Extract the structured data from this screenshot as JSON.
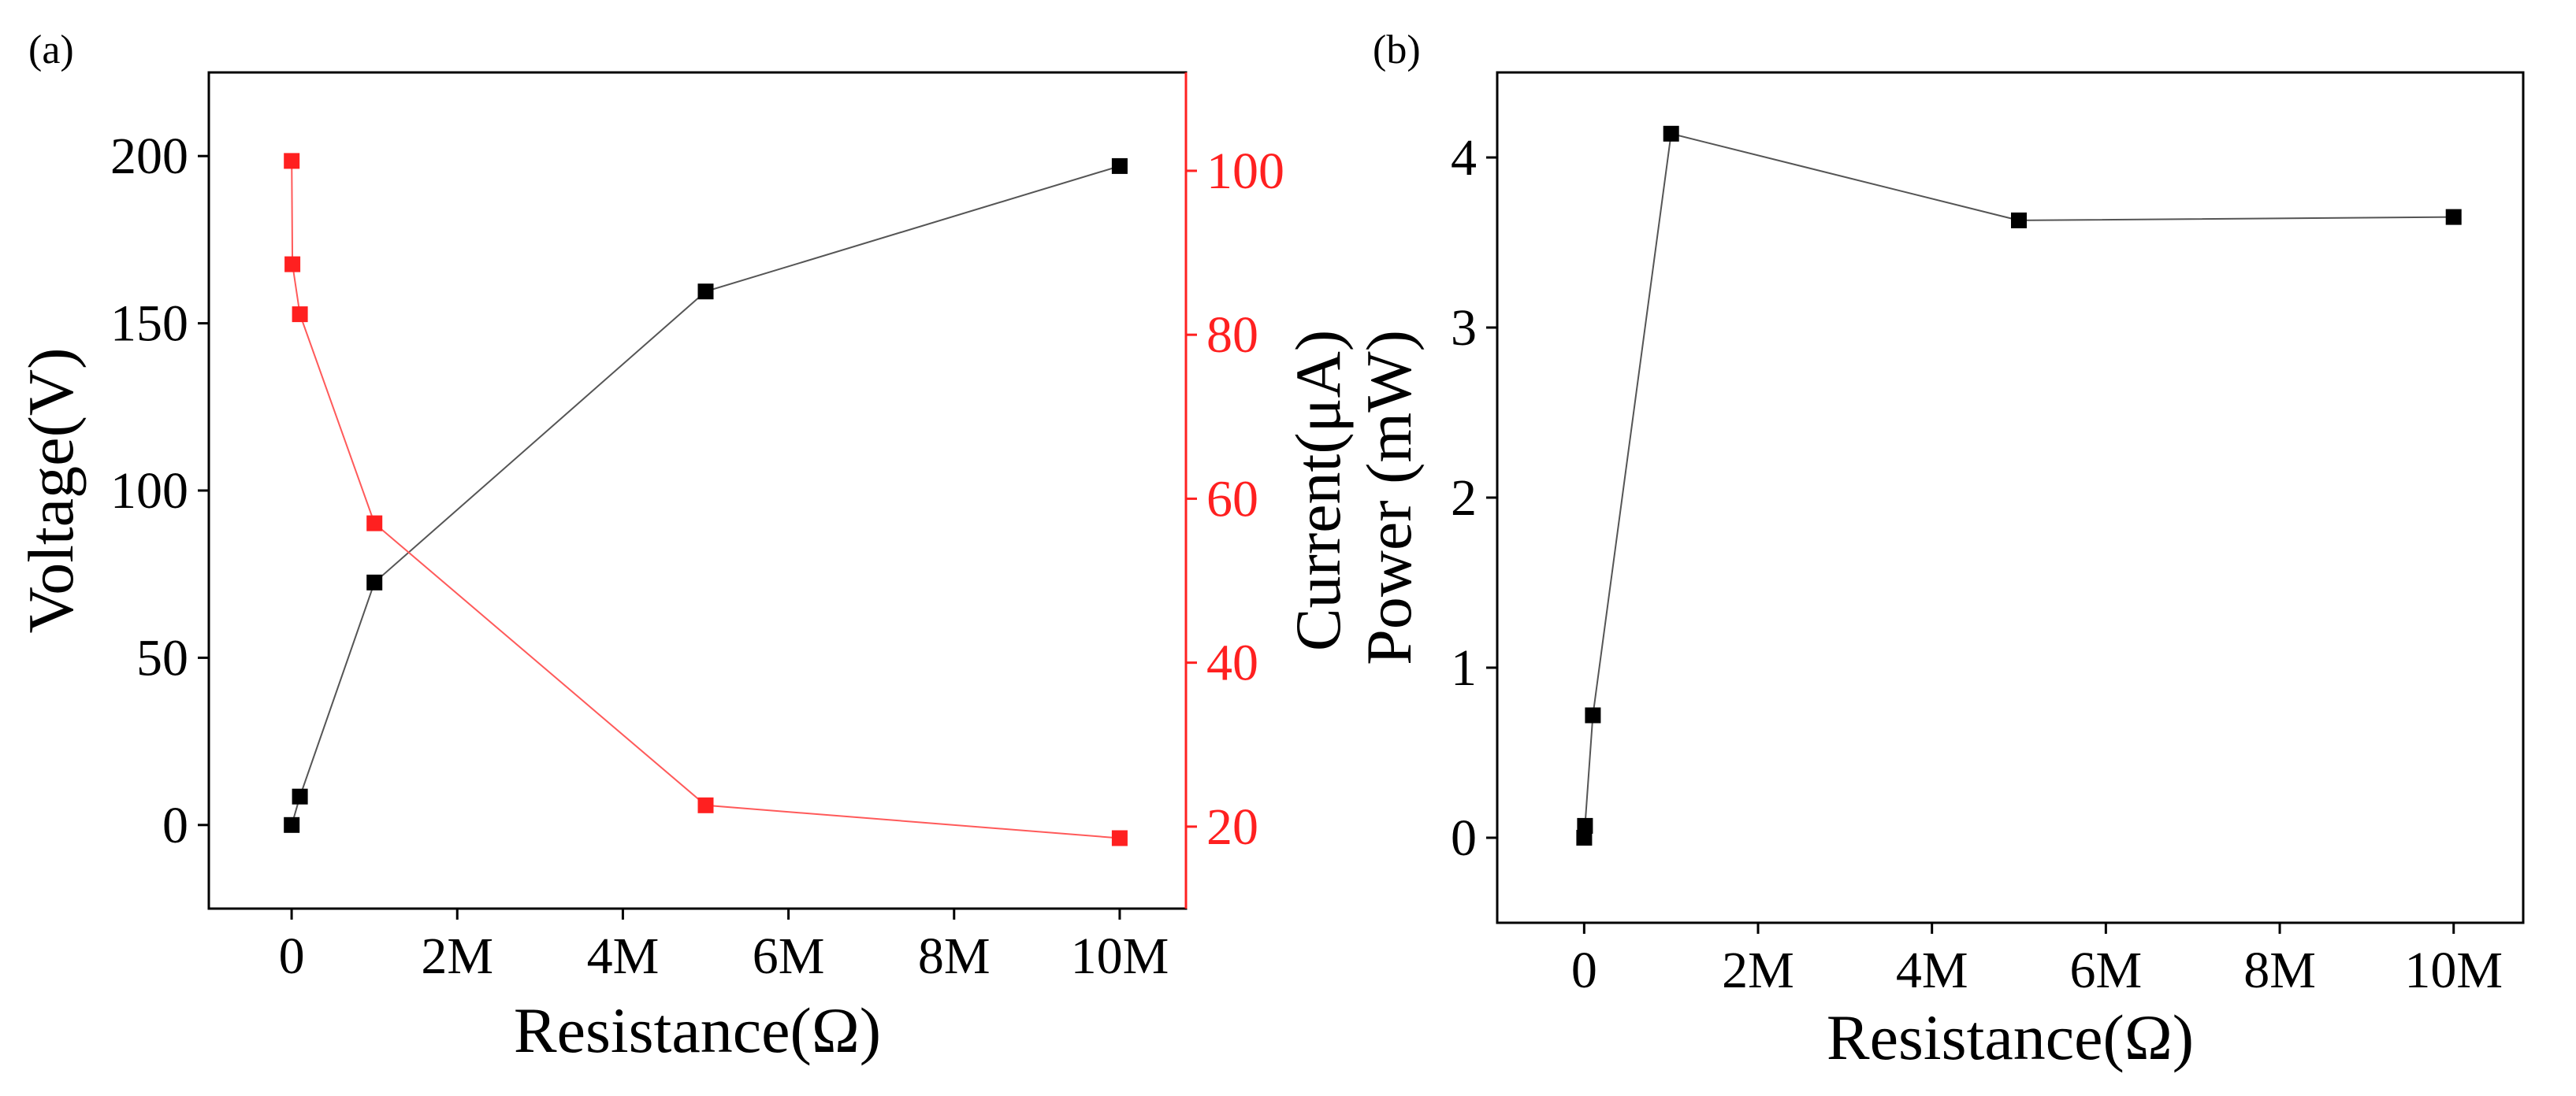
{
  "chart_data": [
    {
      "panel_label": "(a)",
      "type": "line",
      "xlabel": "Resistance(Ω)",
      "ylabel": "Voltage(V)",
      "y2label": "Current(μA)",
      "xlim": [
        -1000000,
        10800000
      ],
      "ylim": [
        -25,
        225
      ],
      "y2lim": [
        10,
        112
      ],
      "x_ticks": [
        0,
        2000000,
        4000000,
        6000000,
        8000000,
        10000000
      ],
      "x_tick_labels": [
        "0",
        "2M",
        "4M",
        "6M",
        "8M",
        "10M"
      ],
      "y_ticks": [
        0,
        50,
        100,
        150,
        200
      ],
      "y_tick_labels": [
        "0",
        "50",
        "100",
        "150",
        "200"
      ],
      "y2_ticks": [
        20,
        40,
        60,
        80,
        100
      ],
      "y2_tick_labels": [
        "20",
        "40",
        "60",
        "80",
        "100"
      ],
      "series": [
        {
          "name": "Voltage",
          "axis": "left",
          "color": "#000000",
          "x": [
            1000,
            100000,
            1000000,
            5000000,
            10000000
          ],
          "values": [
            0,
            8.5,
            72.5,
            159.5,
            197
          ]
        },
        {
          "name": "Current",
          "axis": "right",
          "color": "#ff2020",
          "x": [
            1000,
            10000,
            100000,
            1000000,
            5000000,
            10000000
          ],
          "values": [
            101.2,
            88.6,
            82.5,
            57,
            22.6,
            18.6
          ]
        }
      ]
    },
    {
      "panel_label": "(b)",
      "type": "line",
      "xlabel": "Resistance(Ω)",
      "ylabel": "Power (mW)",
      "xlim": [
        -1000000,
        10800000
      ],
      "ylim": [
        -0.5,
        4.5
      ],
      "x_ticks": [
        0,
        2000000,
        4000000,
        6000000,
        8000000,
        10000000
      ],
      "x_tick_labels": [
        "0",
        "2M",
        "4M",
        "6M",
        "8M",
        "10M"
      ],
      "y_ticks": [
        0,
        1,
        2,
        3,
        4
      ],
      "y_tick_labels": [
        "0",
        "1",
        "2",
        "3",
        "4"
      ],
      "series": [
        {
          "name": "Power",
          "axis": "left",
          "color": "#000000",
          "x": [
            1000,
            10000,
            100000,
            1000000,
            5000000,
            10000000
          ],
          "values": [
            0,
            0.07,
            0.72,
            4.14,
            3.63,
            3.65
          ]
        }
      ]
    }
  ]
}
